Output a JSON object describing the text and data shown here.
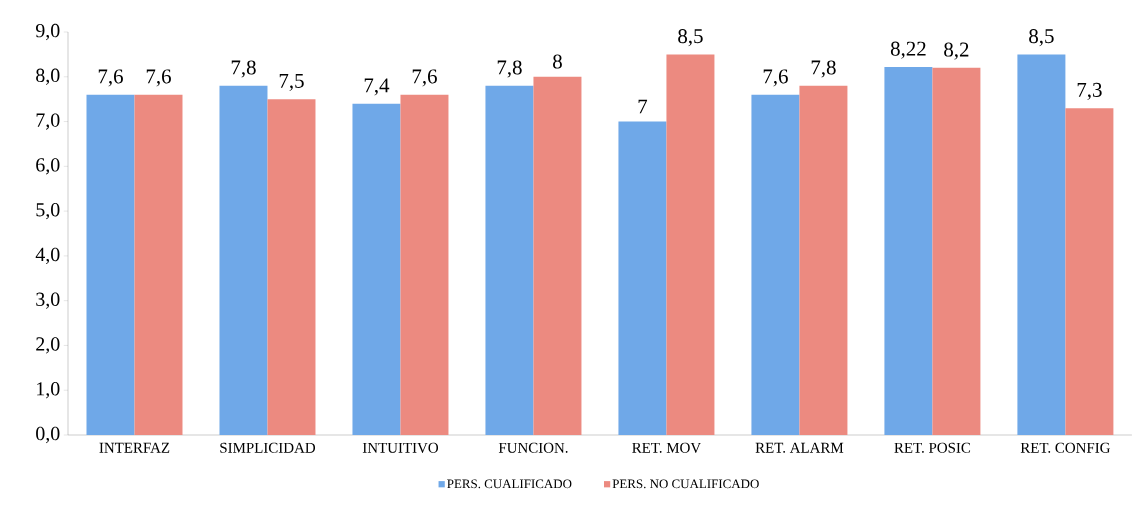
{
  "chart_data": {
    "type": "bar",
    "categories": [
      "INTERFAZ",
      "SIMPLICIDAD",
      "INTUITIVO",
      "FUNCION.",
      "RET. MOV",
      "RET. ALARM",
      "RET. POSIC",
      "RET. CONFIG"
    ],
    "series": [
      {
        "name": "PERS. CUALIFICADO",
        "color": "#6fa8e8",
        "values": [
          7.6,
          7.8,
          7.4,
          7.8,
          7,
          7.6,
          8.22,
          8.5
        ],
        "value_labels": [
          "7,6",
          "7,8",
          "7,4",
          "7,8",
          "7",
          "7,6",
          "8,22",
          "8,5"
        ]
      },
      {
        "name": "PERS. NO CUALIFICADO",
        "color": "#ec8a80",
        "values": [
          7.6,
          7.5,
          7.6,
          8,
          8.5,
          7.8,
          8.2,
          7.3
        ],
        "value_labels": [
          "7,6",
          "7,5",
          "7,6",
          "8",
          "8,5",
          "7,8",
          "8,2",
          "7,3"
        ]
      }
    ],
    "ylim": [
      0,
      9
    ],
    "yticks": [
      {
        "value": 0,
        "label": "0,0"
      },
      {
        "value": 1,
        "label": "1,0"
      },
      {
        "value": 2,
        "label": "2,0"
      },
      {
        "value": 3,
        "label": "3,0"
      },
      {
        "value": 4,
        "label": "4,0"
      },
      {
        "value": 5,
        "label": "5,0"
      },
      {
        "value": 6,
        "label": "6,0"
      },
      {
        "value": 7,
        "label": "7,0"
      },
      {
        "value": 8,
        "label": "8,0"
      },
      {
        "value": 9,
        "label": "9,0"
      }
    ],
    "legend": "bottom"
  }
}
